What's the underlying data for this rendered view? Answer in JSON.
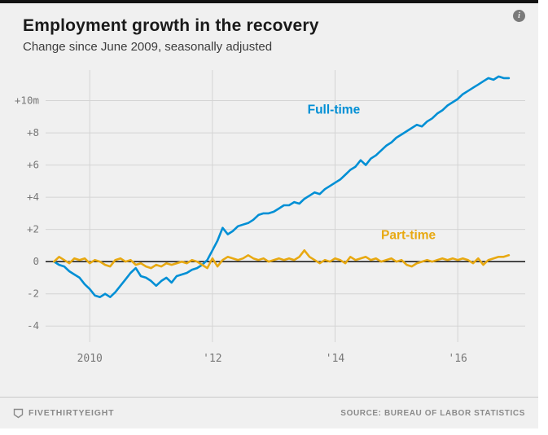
{
  "page": {
    "title": "Employment growth in the recovery",
    "subtitle": "Change since June 2009, seasonally adjusted",
    "info_label": "i"
  },
  "footer": {
    "brand": "FIVETHIRTYEIGHT",
    "source": "SOURCE: BUREAU OF LABOR STATISTICS"
  },
  "chart_data": {
    "type": "line",
    "title": "Employment growth in the recovery",
    "subtitle": "Change since June 2009, seasonally adjusted",
    "unit": "millions of jobs, change since June 2009",
    "x_start_year": 2009,
    "x_start_month": 6,
    "frequency": "monthly",
    "xlim": [
      2009.28,
      2017.1
    ],
    "ylim": [
      -5.0,
      11.9
    ],
    "xtick_values": [
      2010,
      2012,
      2014,
      2016
    ],
    "xtick_labels": [
      "2010",
      "'12",
      "'14",
      "'16"
    ],
    "ytick_values": [
      -4,
      -2,
      0,
      2,
      4,
      6,
      8,
      10
    ],
    "ytick_labels": [
      "-4",
      "-2",
      "0",
      "+2",
      "+4",
      "+6",
      "+8",
      "+10m"
    ],
    "grid": true,
    "grid_color": "#d4d4d4",
    "zero_line_color": "#222222",
    "tick_color": "#777777",
    "background": "#f0f0f0",
    "legend_position": "inline-labels",
    "series": [
      {
        "name": "Full-time",
        "color": "#008fd5",
        "label": {
          "text": "Full-time",
          "x": 2013.55,
          "y": 9.2
        },
        "values": [
          0,
          -0.2,
          -0.3,
          -0.6,
          -0.8,
          -1.0,
          -1.4,
          -1.7,
          -2.1,
          -2.2,
          -2.0,
          -2.2,
          -1.9,
          -1.5,
          -1.1,
          -0.7,
          -0.4,
          -0.9,
          -1.0,
          -1.2,
          -1.5,
          -1.2,
          -1.0,
          -1.3,
          -0.9,
          -0.8,
          -0.7,
          -0.5,
          -0.4,
          -0.2,
          0.1,
          0.7,
          1.3,
          2.1,
          1.7,
          1.9,
          2.2,
          2.3,
          2.4,
          2.6,
          2.9,
          3.0,
          3.0,
          3.1,
          3.3,
          3.5,
          3.5,
          3.7,
          3.6,
          3.9,
          4.1,
          4.3,
          4.2,
          4.5,
          4.7,
          4.9,
          5.1,
          5.4,
          5.7,
          5.9,
          6.3,
          6.0,
          6.4,
          6.6,
          6.9,
          7.2,
          7.4,
          7.7,
          7.9,
          8.1,
          8.3,
          8.5,
          8.4,
          8.7,
          8.9,
          9.2,
          9.4,
          9.7,
          9.9,
          10.1,
          10.4,
          10.6,
          10.8,
          11.0,
          11.2,
          11.4,
          11.3,
          11.5,
          11.4,
          11.4
        ]
      },
      {
        "name": "Part-time",
        "color": "#e8a912",
        "label": {
          "text": "Part-time",
          "x": 2014.75,
          "y": 1.4
        },
        "values": [
          0,
          0.3,
          0.1,
          -0.1,
          0.2,
          0.1,
          0.2,
          -0.1,
          0.1,
          0.0,
          -0.2,
          -0.3,
          0.1,
          0.2,
          0.0,
          0.1,
          -0.2,
          -0.1,
          -0.3,
          -0.4,
          -0.2,
          -0.3,
          -0.1,
          -0.2,
          -0.1,
          0.0,
          -0.1,
          0.1,
          0.0,
          -0.2,
          -0.4,
          0.2,
          -0.3,
          0.1,
          0.3,
          0.2,
          0.1,
          0.2,
          0.4,
          0.2,
          0.1,
          0.2,
          0.0,
          0.1,
          0.2,
          0.1,
          0.2,
          0.1,
          0.3,
          0.7,
          0.3,
          0.1,
          -0.1,
          0.1,
          0.0,
          0.2,
          0.1,
          -0.1,
          0.3,
          0.1,
          0.2,
          0.3,
          0.1,
          0.2,
          0.0,
          0.1,
          0.2,
          0.0,
          0.1,
          -0.2,
          -0.3,
          -0.1,
          0.0,
          0.1,
          0.0,
          0.1,
          0.2,
          0.1,
          0.2,
          0.1,
          0.2,
          0.1,
          -0.1,
          0.2,
          -0.2,
          0.1,
          0.2,
          0.3,
          0.3,
          0.4
        ]
      }
    ]
  }
}
